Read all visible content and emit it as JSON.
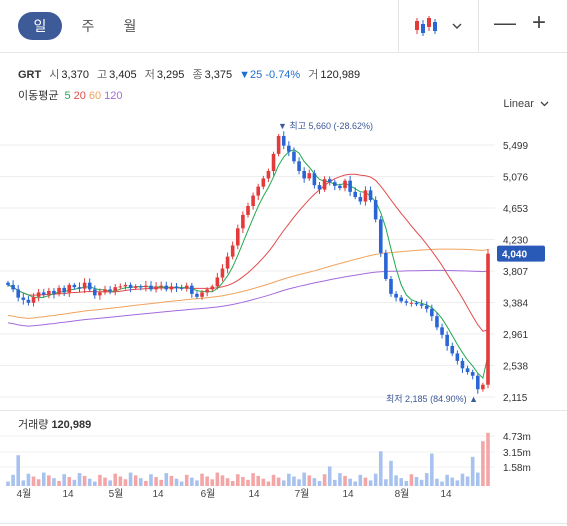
{
  "periods": [
    {
      "label": "일",
      "active": true
    },
    {
      "label": "주",
      "active": false
    },
    {
      "label": "월",
      "active": false
    }
  ],
  "toolbar": {
    "chart_type_icon": "candlestick-icon",
    "dropdown_icon": "chevron-down-icon",
    "zoom_out": "—",
    "zoom_in": "+"
  },
  "quote": {
    "symbol": "GRT",
    "open_label": "시",
    "open": "3,370",
    "high_label": "고",
    "high": "3,405",
    "low_label": "저",
    "low": "3,295",
    "close_label": "종",
    "close": "3,375",
    "change": "▼25 -0.74%",
    "volume_label": "거",
    "volume": "120,989"
  },
  "ma_legend": {
    "label": "이동평균",
    "items": [
      {
        "label": "5",
        "color": "#22a84f"
      },
      {
        "label": "20",
        "color": "#e24b4b"
      },
      {
        "label": "60",
        "color": "#f0a35e"
      },
      {
        "label": "120",
        "color": "#a36bdc"
      }
    ]
  },
  "scale_mode": "Linear",
  "price_axis": [
    "5,499",
    "5,076",
    "4,653",
    "4,230",
    "3,807",
    "3,384",
    "2,961",
    "2,538",
    "2,115"
  ],
  "current_price_badge": "4,040",
  "high_marker": "▼ 최고 5,660 (-28.62%)",
  "low_marker": "최저 2,185 (84.90%) ▲",
  "volume_panel": {
    "label": "거래량",
    "value": "120,989",
    "axis": [
      "4.73m",
      "3.15m",
      "1.58m"
    ]
  },
  "time_axis": [
    "4월",
    "14",
    "5월",
    "14",
    "6월",
    "14",
    "7월",
    "14",
    "8월",
    "14"
  ],
  "colors": {
    "up": "#e33b3b",
    "down": "#2a65d6",
    "badge": "#2a5ab8",
    "marker": "#3d5a99"
  },
  "chart_data": {
    "type": "candlestick",
    "price_range": [
      2115,
      5660
    ],
    "series_close": [
      3620,
      3560,
      3450,
      3420,
      3380,
      3460,
      3520,
      3490,
      3540,
      3500,
      3580,
      3520,
      3620,
      3590,
      3570,
      3650,
      3560,
      3480,
      3520,
      3560,
      3540,
      3590,
      3600,
      3620,
      3580,
      3600,
      3590,
      3610,
      3560,
      3600,
      3610,
      3560,
      3600,
      3580,
      3570,
      3610,
      3500,
      3460,
      3520,
      3560,
      3600,
      3720,
      3840,
      4000,
      4150,
      4380,
      4560,
      4680,
      4820,
      4940,
      5050,
      5150,
      5380,
      5620,
      5490,
      5410,
      5280,
      5150,
      5050,
      5120,
      4960,
      4900,
      5040,
      5000,
      4950,
      4920,
      5020,
      4870,
      4800,
      4740,
      4890,
      4760,
      4500,
      4050,
      3700,
      3500,
      3450,
      3400,
      3380,
      3380,
      3360,
      3340,
      3300,
      3200,
      3050,
      2950,
      2800,
      2700,
      2600,
      2500,
      2450,
      2400,
      2220,
      2280,
      4040
    ]
  }
}
